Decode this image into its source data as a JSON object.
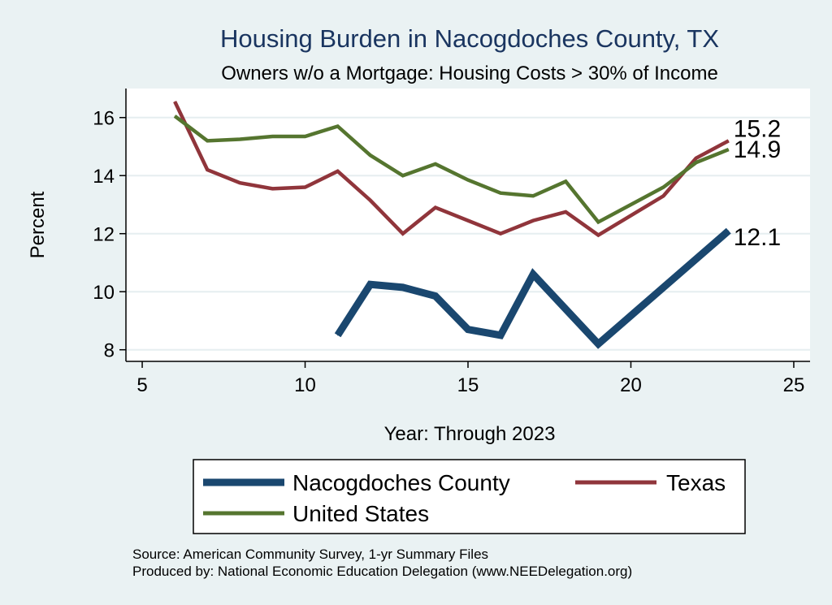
{
  "chart_data": {
    "type": "line",
    "title": "Housing Burden in Nacogdoches County, TX",
    "subtitle": "Owners w/o a Mortgage: Housing Costs > 30% of Income",
    "xlabel": "Year: Through 2023",
    "ylabel": "Percent",
    "xlim": [
      4.5,
      25.5
    ],
    "ylim": [
      7.6,
      17.0
    ],
    "xticks": [
      5,
      10,
      15,
      20,
      25
    ],
    "yticks": [
      8,
      10,
      12,
      14,
      16
    ],
    "grid": "horizontal",
    "legend_position": "bottom",
    "series": [
      {
        "name": "Nacogdoches County",
        "color": "#1a476f",
        "x": [
          11,
          12,
          13,
          14,
          15,
          16,
          17,
          19,
          23
        ],
        "y": [
          8.5,
          10.25,
          10.15,
          9.85,
          8.7,
          8.5,
          10.6,
          8.2,
          12.1
        ],
        "end_label": "12.1"
      },
      {
        "name": "Texas",
        "color": "#90353b",
        "x": [
          6,
          7,
          8,
          9,
          10,
          11,
          12,
          13,
          14,
          15,
          16,
          17,
          18,
          19,
          21,
          22,
          23
        ],
        "y": [
          16.55,
          14.2,
          13.75,
          13.55,
          13.6,
          14.15,
          13.15,
          12.0,
          12.9,
          12.45,
          12.0,
          12.45,
          12.75,
          11.95,
          13.3,
          14.6,
          15.2
        ],
        "end_label": "15.2"
      },
      {
        "name": "United States",
        "color": "#55752f",
        "x": [
          6,
          7,
          8,
          9,
          10,
          11,
          12,
          13,
          14,
          15,
          16,
          17,
          18,
          19,
          21,
          22,
          23
        ],
        "y": [
          16.05,
          15.2,
          15.25,
          15.35,
          15.35,
          15.7,
          14.7,
          14.0,
          14.4,
          13.85,
          13.4,
          13.3,
          13.8,
          12.4,
          13.6,
          14.45,
          14.9
        ],
        "end_label": "14.9"
      }
    ]
  },
  "notes": {
    "source": "Source: American Community Survey, 1-yr Summary Files",
    "produced_by": "Produced by: National Economic Education Delegation (www.NEEDelegation.org)"
  }
}
